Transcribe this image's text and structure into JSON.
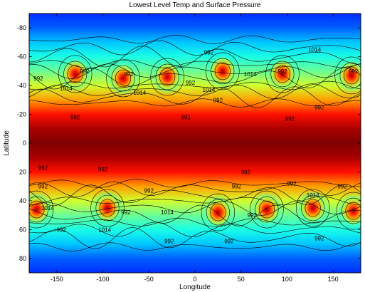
{
  "chart_data": {
    "type": "heatmap",
    "title": "Lowest Level Temp and Surface Pressure",
    "xlabel": "Longitude",
    "ylabel": "Latitude",
    "xlim": [
      -180,
      180
    ],
    "ylim": [
      -90,
      90
    ],
    "y_axis_direction": "reversed",
    "x_ticks": [
      "-150",
      "-100",
      "-50",
      "0",
      "50",
      "100",
      "150"
    ],
    "y_ticks": [
      "-80",
      "-60",
      "-40",
      "-20",
      "0",
      "20",
      "40",
      "60",
      "80"
    ],
    "x_tick_values": [
      -150,
      -100,
      -50,
      0,
      50,
      100,
      150
    ],
    "y_tick_values": [
      -80,
      -60,
      -40,
      -20,
      0,
      20,
      40,
      60,
      80
    ],
    "colormap": "jet",
    "colormap_stops": [
      "#00008f",
      "#0000ff",
      "#00a0ff",
      "#00ffff",
      "#80ff80",
      "#ffff00",
      "#ff8000",
      "#ff0000",
      "#800000"
    ],
    "temperature_profile": [
      {
        "lat": -90,
        "level": 0.16
      },
      {
        "lat": -80,
        "level": 0.2
      },
      {
        "lat": -70,
        "level": 0.3
      },
      {
        "lat": -60,
        "level": 0.4
      },
      {
        "lat": -50,
        "level": 0.48
      },
      {
        "lat": -40,
        "level": 0.58
      },
      {
        "lat": -30,
        "level": 0.72
      },
      {
        "lat": -20,
        "level": 0.86
      },
      {
        "lat": -10,
        "level": 0.96
      },
      {
        "lat": 0,
        "level": 1.0
      },
      {
        "lat": 10,
        "level": 0.96
      },
      {
        "lat": 20,
        "level": 0.86
      },
      {
        "lat": 30,
        "level": 0.72
      },
      {
        "lat": 40,
        "level": 0.58
      },
      {
        "lat": 50,
        "level": 0.48
      },
      {
        "lat": 60,
        "level": 0.4
      },
      {
        "lat": 70,
        "level": 0.3
      },
      {
        "lat": 80,
        "level": 0.2
      },
      {
        "lat": 90,
        "level": 0.16
      }
    ],
    "hot_spots": [
      {
        "lon": -130,
        "lat": -48,
        "label": "warm"
      },
      {
        "lon": -78,
        "lat": -45,
        "label": "warm"
      },
      {
        "lon": -30,
        "lat": -46,
        "label": "warm"
      },
      {
        "lon": 30,
        "lat": -50,
        "label": "warm"
      },
      {
        "lon": 95,
        "lat": -48,
        "label": "warm"
      },
      {
        "lon": 170,
        "lat": -47,
        "label": "warm"
      },
      {
        "lon": -172,
        "lat": 46,
        "label": "warm"
      },
      {
        "lon": -95,
        "lat": 45,
        "label": "warm"
      },
      {
        "lon": 25,
        "lat": 48,
        "label": "warm"
      },
      {
        "lon": 78,
        "lat": 46,
        "label": "warm"
      },
      {
        "lon": 128,
        "lat": 45,
        "label": "warm"
      },
      {
        "lon": 172,
        "lat": 47,
        "label": "warm"
      }
    ],
    "contour_labels": [
      {
        "text": "992",
        "lon": -170,
        "lat": -45
      },
      {
        "text": "992",
        "lon": -120,
        "lat": -50
      },
      {
        "text": "1014",
        "lon": -140,
        "lat": -38
      },
      {
        "text": "992",
        "lon": -72,
        "lat": -48
      },
      {
        "text": "1014",
        "lon": -60,
        "lat": -35
      },
      {
        "text": "992",
        "lon": -5,
        "lat": -42
      },
      {
        "text": "992",
        "lon": 15,
        "lat": -63
      },
      {
        "text": "1014",
        "lon": 15,
        "lat": -37
      },
      {
        "text": "992",
        "lon": 25,
        "lat": -30
      },
      {
        "text": "1014",
        "lon": 60,
        "lat": -48
      },
      {
        "text": "992",
        "lon": 95,
        "lat": -50
      },
      {
        "text": "1014",
        "lon": 130,
        "lat": -65
      },
      {
        "text": "992",
        "lon": 172,
        "lat": -50
      },
      {
        "text": "992",
        "lon": 135,
        "lat": -25
      },
      {
        "text": "992",
        "lon": -130,
        "lat": -18
      },
      {
        "text": "992",
        "lon": -10,
        "lat": -18
      },
      {
        "text": "992",
        "lon": 103,
        "lat": -17
      },
      {
        "text": "992",
        "lon": -165,
        "lat": 17
      },
      {
        "text": "992",
        "lon": -100,
        "lat": 18
      },
      {
        "text": "992",
        "lon": -165,
        "lat": 30
      },
      {
        "text": "992",
        "lon": -50,
        "lat": 33
      },
      {
        "text": "992",
        "lon": 55,
        "lat": 20
      },
      {
        "text": "992",
        "lon": 45,
        "lat": 30
      },
      {
        "text": "992",
        "lon": 105,
        "lat": 28
      },
      {
        "text": "992",
        "lon": 160,
        "lat": 30
      },
      {
        "text": "1014",
        "lon": 128,
        "lat": 36
      },
      {
        "text": "1014",
        "lon": -160,
        "lat": 45
      },
      {
        "text": "992",
        "lon": -145,
        "lat": 60
      },
      {
        "text": "1014",
        "lon": -98,
        "lat": 60
      },
      {
        "text": "992",
        "lon": -75,
        "lat": 48
      },
      {
        "text": "1014",
        "lon": -30,
        "lat": 48
      },
      {
        "text": "992",
        "lon": -28,
        "lat": 68
      },
      {
        "text": "992",
        "lon": 37,
        "lat": 68
      },
      {
        "text": "992",
        "lon": 62,
        "lat": 50
      },
      {
        "text": "992",
        "lon": 135,
        "lat": 66
      }
    ]
  }
}
